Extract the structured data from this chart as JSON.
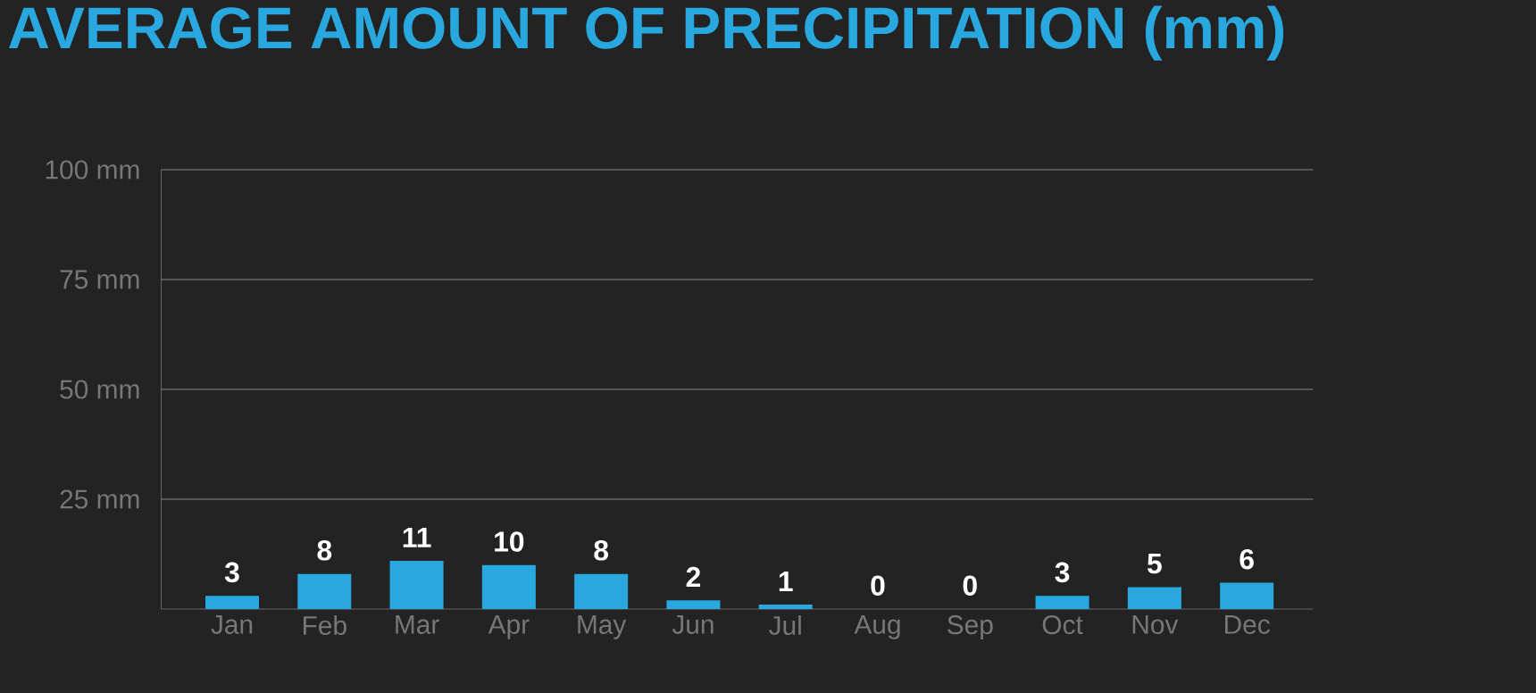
{
  "chart_data": {
    "type": "bar",
    "title": "AVERAGE AMOUNT OF PRECIPITATION (mm)",
    "categories": [
      "Jan",
      "Feb",
      "Mar",
      "Apr",
      "May",
      "Jun",
      "Jul",
      "Aug",
      "Sep",
      "Oct",
      "Nov",
      "Dec"
    ],
    "values": [
      3,
      8,
      11,
      10,
      8,
      2,
      1,
      0,
      0,
      3,
      5,
      6
    ],
    "color": "#29a8e0",
    "ylim": [
      0,
      100
    ],
    "yticks": [
      {
        "value": 25,
        "label": "25 mm"
      },
      {
        "value": 50,
        "label": "50 mm"
      },
      {
        "value": 75,
        "label": "75 mm"
      },
      {
        "value": 100,
        "label": "100 mm"
      }
    ],
    "grid": "y",
    "data_labels": true
  }
}
